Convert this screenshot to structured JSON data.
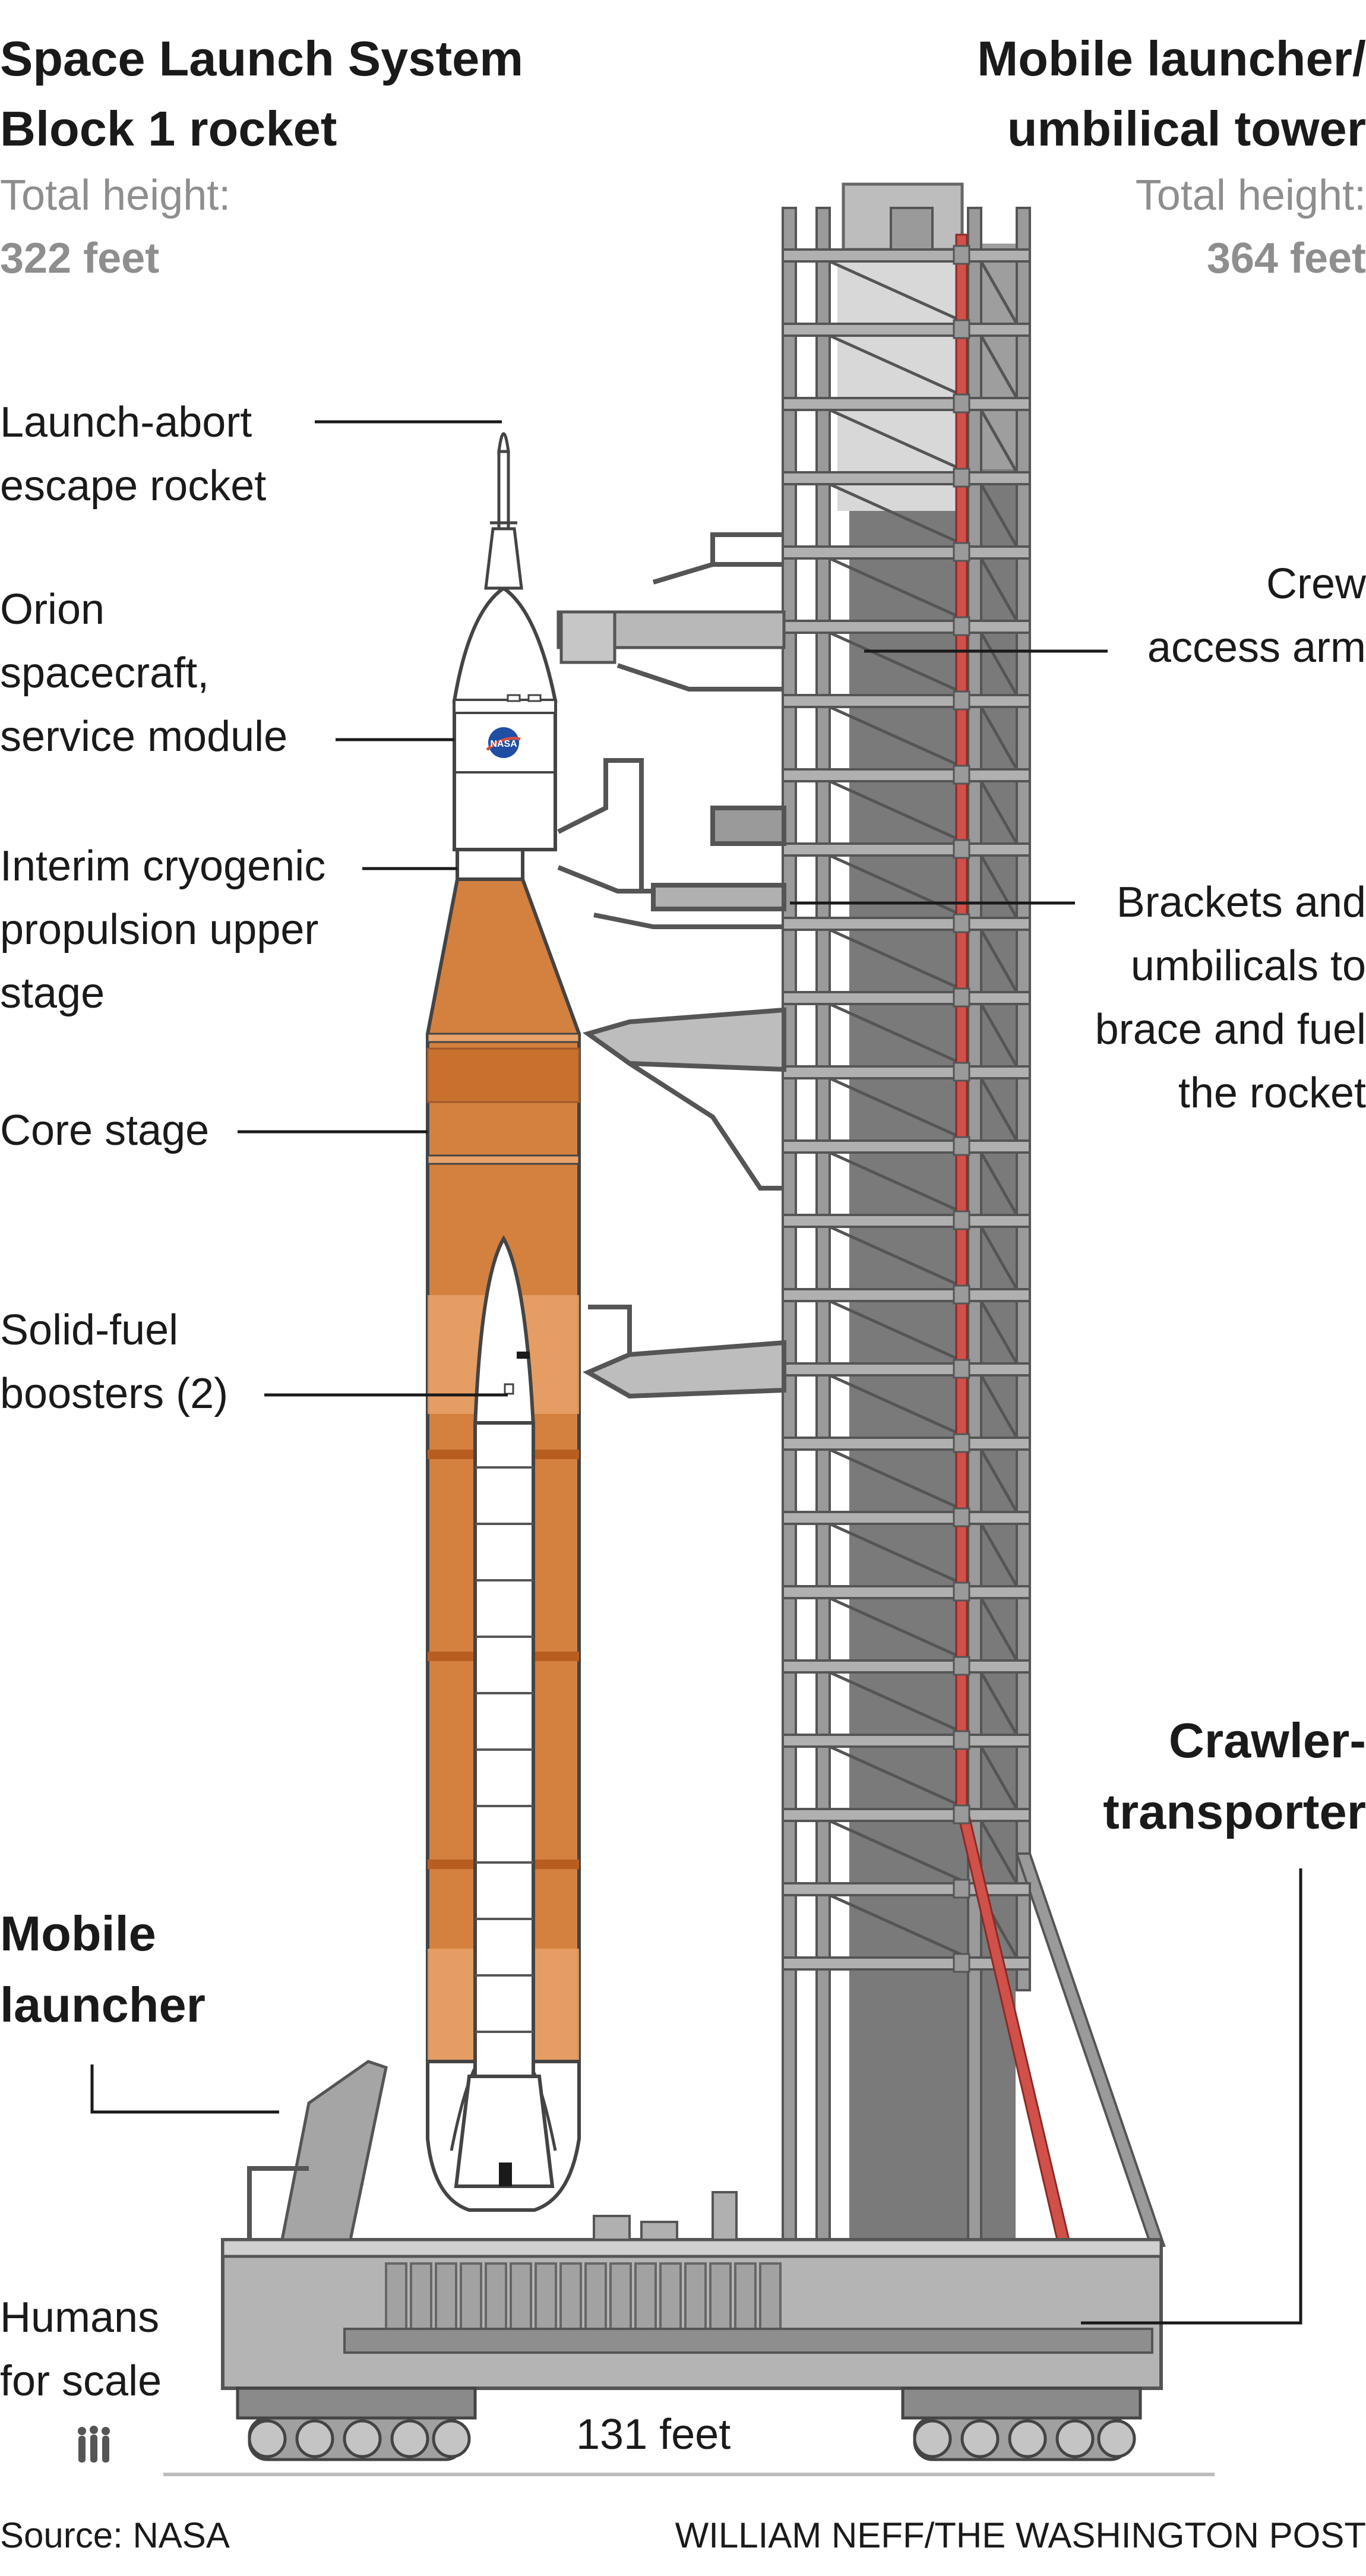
{
  "rocket": {
    "title_line1": "Space Launch System",
    "title_line2": "Block 1 rocket",
    "height_label": "Total height:",
    "height_value": "322 feet"
  },
  "tower": {
    "title_line1": "Mobile launcher/",
    "title_line2": "umbilical tower",
    "height_label": "Total height:",
    "height_value": "364 feet"
  },
  "labels": {
    "launch_abort": [
      "Launch-abort",
      "escape rocket"
    ],
    "orion": [
      "Orion",
      "spacecraft,",
      "service module"
    ],
    "icps": [
      "Interim cryogenic",
      "propulsion upper",
      "stage"
    ],
    "core_stage": "Core stage",
    "boosters": [
      "Solid-fuel",
      "boosters (2)"
    ],
    "crew_arm": [
      "Crew",
      "access arm"
    ],
    "brackets": [
      "Brackets and",
      "umbilicals to",
      "brace and fuel",
      "the rocket"
    ],
    "crawler": [
      "Crawler-",
      "transporter"
    ],
    "mobile_launcher": [
      "Mobile",
      "launcher"
    ],
    "humans": [
      "Humans",
      "for scale"
    ],
    "width": "131 feet"
  },
  "nasa_badge": "NASA",
  "footer": {
    "source": "Source: NASA",
    "credit": "WILLIAM NEFF/THE WASHINGTON POST"
  },
  "colors": {
    "core_orange": "#d4803e",
    "core_light": "#e8a26a",
    "tower_grey": "#9a9a9a",
    "tower_dark": "#7a7a7a",
    "umbilical_red": "#d0504a"
  }
}
